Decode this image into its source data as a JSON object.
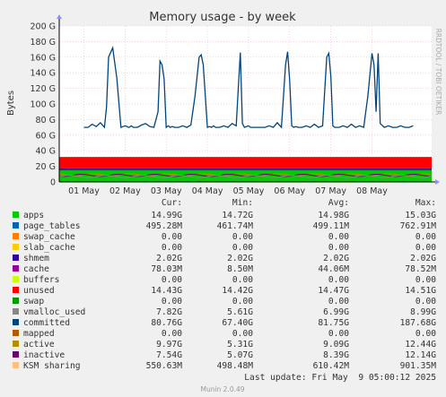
{
  "watermark": "RRDTOOL / TOBI OETIKER",
  "footer": {
    "last_update": "Last update: Fri May  9 05:00:12 2025",
    "munin": "Munin 2.0.49"
  },
  "legend_header": [
    "Cur:",
    "Min:",
    "Avg:",
    "Max:"
  ],
  "chart_data": {
    "type": "area",
    "title": "Memory usage - by week",
    "ylabel": "Bytes",
    "ylim": [
      0,
      200
    ],
    "y_unit": "G",
    "yticks": [
      "0",
      "20 G",
      "40 G",
      "60 G",
      "80 G",
      "100 G",
      "120 G",
      "140 G",
      "160 G",
      "180 G",
      "200 G"
    ],
    "xticks": [
      "01 May",
      "02 May",
      "03 May",
      "04 May",
      "05 May",
      "06 May",
      "07 May",
      "08 May"
    ],
    "grid": true,
    "stack_colors": {
      "apps": "#00cc00",
      "page_tables": "#0066b3",
      "swap_cache": "#ff8000",
      "slab_cache": "#ffcc00",
      "shmem": "#330099",
      "cache": "#990099",
      "buffers": "#ccff00",
      "unused": "#ff0000"
    },
    "stack_avg": {
      "apps": 14.98,
      "page_tables": 0.5,
      "swap_cache": 0.0,
      "slab_cache": 0.0,
      "shmem": 2.02,
      "cache": 0.04,
      "buffers": 0.0,
      "unused": 14.47
    },
    "committed": {
      "color": "#00457c",
      "x_days": [
        0.0,
        0.1,
        0.2,
        0.3,
        0.4,
        0.5,
        0.55,
        0.6,
        0.7,
        0.8,
        0.9,
        1.0,
        1.05,
        1.08,
        1.1,
        1.15,
        1.2,
        1.3,
        1.4,
        1.5,
        1.6,
        1.7,
        1.8,
        1.85,
        1.9,
        1.95,
        2.0,
        2.05,
        2.1,
        2.15,
        2.2,
        2.3,
        2.4,
        2.5,
        2.6,
        2.7,
        2.8,
        2.85,
        2.9,
        3.0,
        3.05,
        3.1,
        3.15,
        3.2,
        3.3,
        3.4,
        3.5,
        3.6,
        3.7,
        3.8,
        3.85,
        3.9,
        4.0,
        4.05,
        4.1,
        4.2,
        4.3,
        4.4,
        4.5,
        4.6,
        4.7,
        4.8,
        4.9,
        4.95,
        5.0,
        5.05,
        5.1,
        5.15,
        5.2,
        5.3,
        5.4,
        5.5,
        5.6,
        5.7,
        5.8,
        5.9,
        5.95,
        6.0,
        6.05,
        6.1,
        6.15,
        6.2,
        6.3,
        6.4,
        6.5,
        6.6,
        6.7,
        6.8,
        6.9,
        7.0,
        7.05,
        7.1,
        7.15,
        7.2,
        7.3,
        7.4,
        7.5,
        7.6,
        7.7,
        7.8,
        7.9,
        8.0
      ],
      "values": [
        70,
        70,
        74,
        71,
        76,
        70,
        96,
        160,
        172,
        133,
        70,
        72,
        71,
        70,
        70,
        72,
        70,
        70,
        73,
        75,
        71,
        70,
        90,
        155,
        150,
        132,
        70,
        72,
        70,
        71,
        70,
        70,
        72,
        70,
        73,
        110,
        160,
        163,
        150,
        70,
        71,
        70,
        72,
        70,
        70,
        72,
        70,
        75,
        72,
        166,
        75,
        70,
        72,
        70,
        70,
        70,
        70,
        70,
        72,
        70,
        76,
        70,
        150,
        167,
        130,
        72,
        70,
        71,
        70,
        70,
        72,
        70,
        74,
        70,
        72,
        160,
        165,
        135,
        72,
        70,
        70,
        70,
        72,
        70,
        74,
        70,
        72,
        70,
        110,
        165,
        150,
        90,
        165,
        75,
        70,
        72,
        70,
        70,
        72,
        70,
        70,
        72
      ]
    },
    "legend": [
      {
        "name": "apps",
        "color": "#00cc00",
        "cur": "14.99G",
        "min": "14.72G",
        "avg": "14.98G",
        "max": "15.03G"
      },
      {
        "name": "page_tables",
        "color": "#0066b3",
        "cur": "495.28M",
        "min": "461.74M",
        "avg": "499.11M",
        "max": "762.91M"
      },
      {
        "name": "swap_cache",
        "color": "#ff8000",
        "cur": "0.00",
        "min": "0.00",
        "avg": "0.00",
        "max": "0.00"
      },
      {
        "name": "slab_cache",
        "color": "#ffcc00",
        "cur": "0.00",
        "min": "0.00",
        "avg": "0.00",
        "max": "0.00"
      },
      {
        "name": "shmem",
        "color": "#330099",
        "cur": "2.02G",
        "min": "2.02G",
        "avg": "2.02G",
        "max": "2.02G"
      },
      {
        "name": "cache",
        "color": "#990099",
        "cur": "78.03M",
        "min": "8.50M",
        "avg": "44.06M",
        "max": "78.52M"
      },
      {
        "name": "buffers",
        "color": "#ccff00",
        "cur": "0.00",
        "min": "0.00",
        "avg": "0.00",
        "max": "0.00"
      },
      {
        "name": "unused",
        "color": "#ff0000",
        "cur": "14.43G",
        "min": "14.42G",
        "avg": "14.47G",
        "max": "14.51G"
      },
      {
        "name": "swap",
        "color": "#009900",
        "cur": "0.00",
        "min": "0.00",
        "avg": "0.00",
        "max": "0.00"
      },
      {
        "name": "vmalloc_used",
        "color": "#888888",
        "cur": "7.82G",
        "min": "5.61G",
        "avg": "6.99G",
        "max": "8.99G"
      },
      {
        "name": "committed",
        "color": "#00457c",
        "cur": "80.76G",
        "min": "67.40G",
        "avg": "81.75G",
        "max": "187.68G"
      },
      {
        "name": "mapped",
        "color": "#b35a00",
        "cur": "0.00",
        "min": "0.00",
        "avg": "0.00",
        "max": "0.00"
      },
      {
        "name": "active",
        "color": "#b38f00",
        "cur": "9.97G",
        "min": "5.31G",
        "avg": "9.09G",
        "max": "12.44G"
      },
      {
        "name": "inactive",
        "color": "#6b006b",
        "cur": "7.54G",
        "min": "5.07G",
        "avg": "8.39G",
        "max": "12.14G"
      },
      {
        "name": "KSM sharing",
        "color": "#ffbf80",
        "cur": "550.63M",
        "min": "498.48M",
        "avg": "610.42M",
        "max": "901.35M"
      }
    ]
  }
}
